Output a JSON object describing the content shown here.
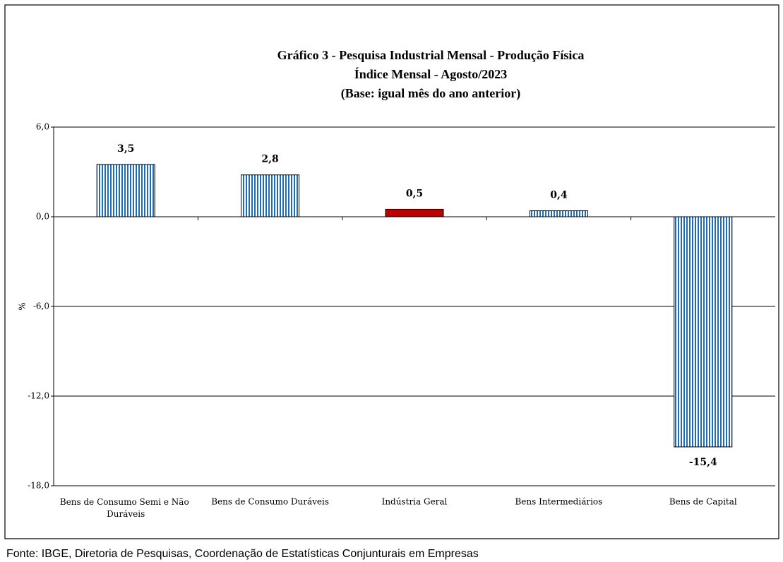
{
  "chart_data": {
    "type": "bar",
    "title": [
      "Gráfico 3 - Pesquisa Industrial Mensal - Produção Física",
      "Índice Mensal - Agosto/2023",
      "(Base: igual mês do ano anterior)"
    ],
    "ylabel": "%",
    "categories": [
      "Bens de Consumo Semi e Não Duráveis",
      "Bens de Consumo Duráveis",
      "Indústria Geral",
      "Bens Intermediários",
      "Bens de Capital"
    ],
    "values": [
      3.5,
      2.8,
      0.5,
      0.4,
      -15.4
    ],
    "value_labels": [
      "3,5",
      "2,8",
      "0,5",
      "0,4",
      "-15,4"
    ],
    "colors": [
      "#1f6db5",
      "#1f6db5",
      "#c00000",
      "#1f6db5",
      "#1f6db5"
    ],
    "bar_styles": [
      "striped",
      "striped",
      "solid",
      "striped",
      "striped"
    ],
    "ylim": [
      -18,
      6
    ],
    "yticks": [
      {
        "value": -18,
        "label": "-18,0"
      },
      {
        "value": -12,
        "label": "-12,0"
      },
      {
        "value": -6,
        "label": "-6,0"
      },
      {
        "value": 0,
        "label": "0,0"
      },
      {
        "value": 6,
        "label": "6,0"
      }
    ],
    "grid": true,
    "source": "Fonte: IBGE, Diretoria de Pesquisas, Coordenação de Estatísticas Conjunturais em Empresas"
  }
}
